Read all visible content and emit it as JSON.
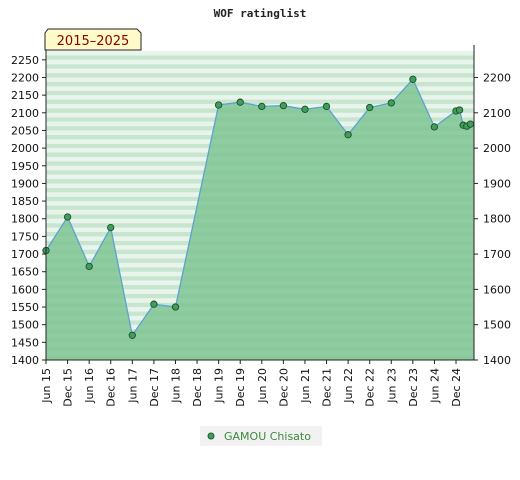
{
  "chart_data": {
    "type": "area",
    "title": "WOF ratinglist",
    "badge": "2015–2025",
    "x_labels": [
      "Jun 15",
      "Dec 15",
      "Jun 16",
      "Dec 16",
      "Jun 17",
      "Dec 17",
      "Jun 18",
      "Dec 18",
      "Jun 19",
      "Dec 19",
      "Jun 20",
      "Dec 20",
      "Jun 21",
      "Dec 21",
      "Jun 22",
      "Dec 22",
      "Jun 23",
      "Dec 23",
      "Jun 24",
      "Dec 24"
    ],
    "series": [
      {
        "name": "GAMOU Chisato",
        "x": [
          "2015-06",
          "2015-12",
          "2016-06",
          "2016-12",
          "2017-06",
          "2017-12",
          "2018-06",
          "2019-06",
          "2019-12",
          "2020-06",
          "2020-12",
          "2021-06",
          "2021-12",
          "2022-06",
          "2022-12",
          "2023-06",
          "2023-12",
          "2024-06",
          "2024-12",
          "2025-01",
          "2025-02",
          "2025-03",
          "2025-04",
          "2025-05"
        ],
        "values": [
          1710,
          1805,
          1665,
          1775,
          1470,
          1558,
          1550,
          2122,
          2130,
          2118,
          2120,
          2110,
          2118,
          2038,
          2115,
          2128,
          2195,
          2060,
          2105,
          2108,
          2065,
          2062,
          2068,
          2070
        ],
        "show_marker": [
          true,
          true,
          true,
          true,
          true,
          true,
          true,
          true,
          true,
          true,
          true,
          true,
          true,
          true,
          true,
          true,
          true,
          true,
          true,
          true,
          true,
          true,
          true,
          false
        ]
      }
    ],
    "y_left_ticks": [
      1400,
      1450,
      1500,
      1550,
      1600,
      1650,
      1700,
      1750,
      1800,
      1850,
      1900,
      1950,
      2000,
      2050,
      2100,
      2150,
      2200,
      2250
    ],
    "y_right_ticks": [
      1400,
      1500,
      1600,
      1700,
      1800,
      1900,
      2000,
      2100,
      2200
    ],
    "ylim": [
      1400,
      2275
    ],
    "x_range": [
      "2015-06",
      "2025-05"
    ],
    "colors": {
      "line": "#5ba3d0",
      "fill": "#77c08c",
      "marker": "#3f9e5a",
      "band_dark": "#c8e6cf",
      "band_light": "#e9f5ec",
      "badge_bg": "#fffbc8"
    },
    "legend_position": "bottom-center",
    "grid": true
  }
}
